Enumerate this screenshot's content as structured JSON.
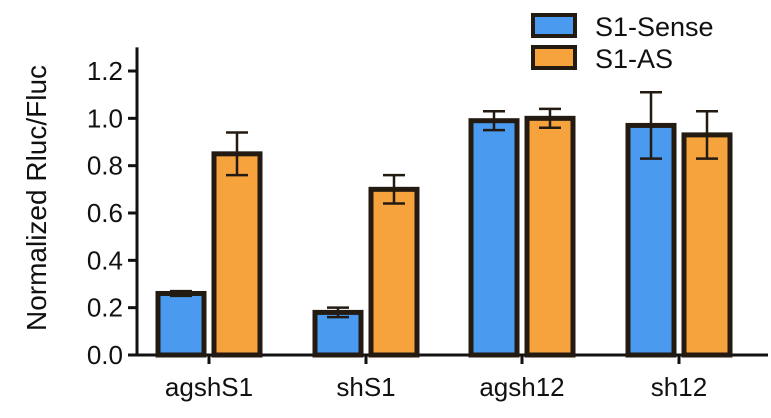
{
  "chart_data": {
    "type": "bar",
    "title": "",
    "xlabel": "",
    "ylabel": "Normalized Rluc/Fluc",
    "ylim": [
      0,
      1.3
    ],
    "yticks": [
      "0.0",
      "0.2",
      "0.4",
      "0.6",
      "0.8",
      "1.0",
      "1.2"
    ],
    "categories": [
      "agshS1",
      "shS1",
      "agsh12",
      "sh12"
    ],
    "series": [
      {
        "name": "S1-Sense",
        "color": "#4a9bef",
        "values": [
          0.26,
          0.18,
          0.99,
          0.97
        ],
        "errors": [
          0.01,
          0.02,
          0.04,
          0.14
        ]
      },
      {
        "name": "S1-AS",
        "color": "#f7a33d",
        "values": [
          0.85,
          0.7,
          1.0,
          0.93
        ],
        "errors": [
          0.09,
          0.06,
          0.04,
          0.1
        ]
      }
    ],
    "legend_position": "top-right",
    "grid": false
  }
}
